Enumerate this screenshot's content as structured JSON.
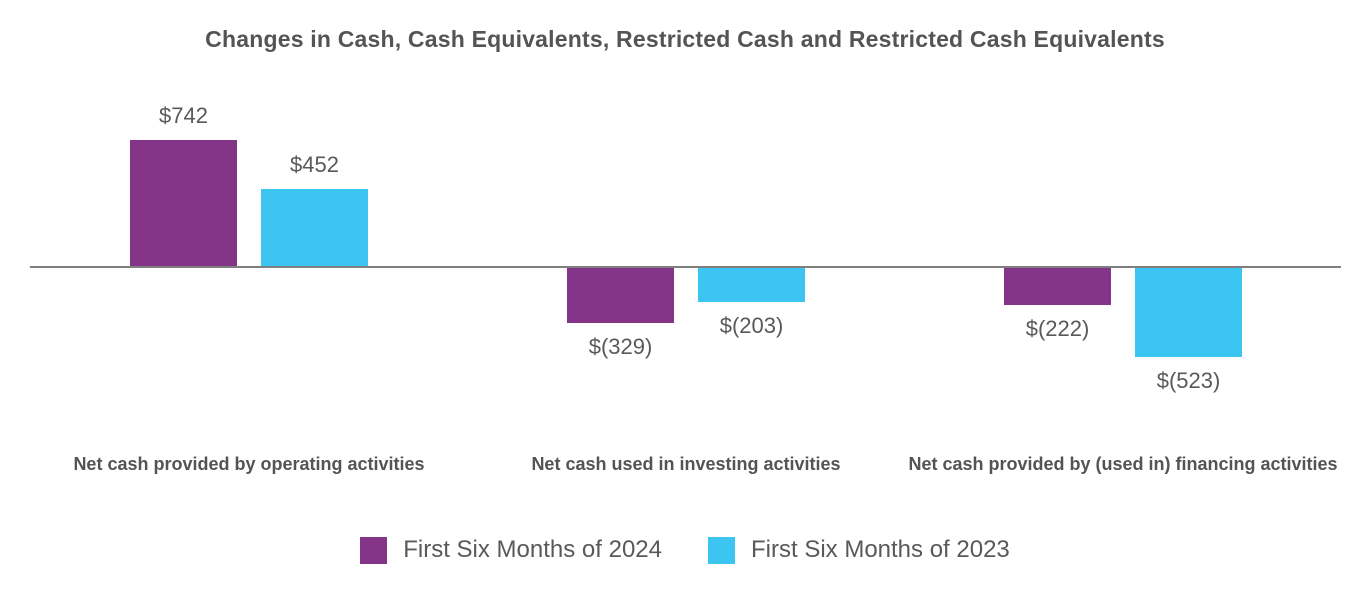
{
  "chart_data": {
    "type": "bar",
    "title": "Changes in Cash, Cash Equivalents, Restricted Cash and Restricted Cash Equivalents",
    "categories": [
      "Net cash provided by operating activities",
      "Net cash used in investing activities",
      "Net cash provided by (used in) financing activities"
    ],
    "series": [
      {
        "name": "First Six Months of 2024",
        "color": "#853588",
        "values": [
          742,
          -329,
          -222
        ],
        "data_labels": [
          "$742",
          "$(329)",
          "$(222)"
        ]
      },
      {
        "name": "First Six Months of 2023",
        "color": "#3CC5F0",
        "values": [
          452,
          -203,
          -523
        ],
        "data_labels": [
          "$452",
          "$(203)",
          "$(523)"
        ]
      }
    ],
    "ylim": [
      -600,
      800
    ],
    "grid": false,
    "legend_position": "bottom",
    "axis_color": "#7F7F7F",
    "text_color": "#595959"
  }
}
